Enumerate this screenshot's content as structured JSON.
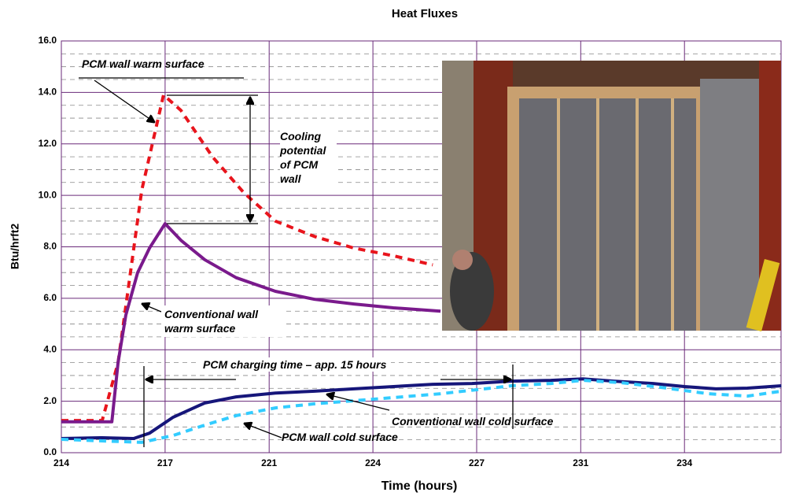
{
  "chart_data": {
    "type": "line",
    "title": "Heat Fluxes",
    "xlabel": "Time (hours)",
    "ylabel": "Btu/hrft2",
    "xlim": [
      214,
      237.1
    ],
    "ylim": [
      0,
      16
    ],
    "xticks": [
      214,
      {
        "value": 217.33,
        "label": "217"
      },
      {
        "value": 220.67,
        "label": "221"
      },
      224,
      {
        "value": 227.33,
        "label": "227"
      },
      {
        "value": 230.67,
        "label": "231"
      },
      234
    ],
    "yticks": [
      {
        "value": 0,
        "label": "0.0"
      },
      {
        "value": 2,
        "label": "2.0"
      },
      {
        "value": 4,
        "label": "4.0"
      },
      {
        "value": 6,
        "label": "6.0"
      },
      {
        "value": 8,
        "label": "8.0"
      },
      {
        "value": 10,
        "label": "10.0"
      },
      {
        "value": 12,
        "label": "12.0"
      },
      {
        "value": 14,
        "label": "14.0"
      },
      {
        "value": 16,
        "label": "16.0"
      }
    ],
    "yminorticks": [
      0.5,
      1,
      1.5,
      2.5,
      3,
      3.5,
      4.5,
      5,
      5.5,
      6.5,
      7,
      7.5,
      8.5,
      9,
      9.5,
      10.5,
      11,
      11.5,
      12.5,
      13,
      13.5,
      14.5,
      15,
      15.5
    ],
    "grid": true,
    "annotations": [
      "Cooling potential of PCM wall",
      "PCM charging time – app. 15 hours"
    ],
    "series": [
      {
        "name": "PCM wall warm surface",
        "color": "#e8141c",
        "dashed": true,
        "width": 4,
        "x": [
          214,
          215.31,
          215.82,
          216.07,
          216.58,
          217.28,
          217.84,
          218.85,
          219.86,
          220.87,
          222.13,
          223.39,
          224.66,
          225.92
        ],
        "values": [
          1.25,
          1.25,
          3.5,
          5.7,
          10.2,
          13.9,
          13.3,
          11.5,
          10.1,
          9.0,
          8.4,
          7.95,
          7.65,
          7.3
        ]
      },
      {
        "name": "Conventional wall warm surface",
        "color": "#7a1a8c",
        "dashed": false,
        "width": 4,
        "x": [
          214,
          215.62,
          215.82,
          216.07,
          216.45,
          216.83,
          217.33,
          217.84,
          218.6,
          219.61,
          220.87,
          222.13,
          223.39,
          224.66,
          226.17
        ],
        "values": [
          1.2,
          1.2,
          3.5,
          5.35,
          7.0,
          7.95,
          8.9,
          8.25,
          7.5,
          6.8,
          6.27,
          5.96,
          5.78,
          5.63,
          5.5
        ]
      },
      {
        "name": "Conventional wall cold surface",
        "color": "#16167a",
        "dashed": false,
        "width": 4,
        "x": [
          214,
          215.31,
          216.32,
          216.83,
          217.59,
          218.6,
          219.61,
          220.87,
          222.13,
          223.39,
          224.66,
          225.92,
          227.18,
          228.44,
          229.71,
          230.74,
          231.73,
          232.99,
          234,
          235.01,
          236.02,
          237.11
        ],
        "values": [
          0.55,
          0.58,
          0.55,
          0.76,
          1.38,
          1.93,
          2.17,
          2.32,
          2.39,
          2.48,
          2.57,
          2.66,
          2.69,
          2.78,
          2.81,
          2.87,
          2.78,
          2.69,
          2.57,
          2.48,
          2.51,
          2.6
        ]
      },
      {
        "name": "PCM wall cold surface",
        "color": "#33ccff",
        "dashed": true,
        "width": 4,
        "x": [
          214,
          215.31,
          216.58,
          217.59,
          218.6,
          219.61,
          220.87,
          222.13,
          223.39,
          224.66,
          226.17,
          227.36,
          228.44,
          229.71,
          230.74,
          231.98,
          233.24,
          234.76,
          236.02,
          237.11
        ],
        "values": [
          0.52,
          0.46,
          0.4,
          0.67,
          1.07,
          1.44,
          1.74,
          1.9,
          2.02,
          2.14,
          2.29,
          2.45,
          2.6,
          2.69,
          2.81,
          2.72,
          2.54,
          2.29,
          2.2,
          2.39
        ]
      }
    ]
  }
}
